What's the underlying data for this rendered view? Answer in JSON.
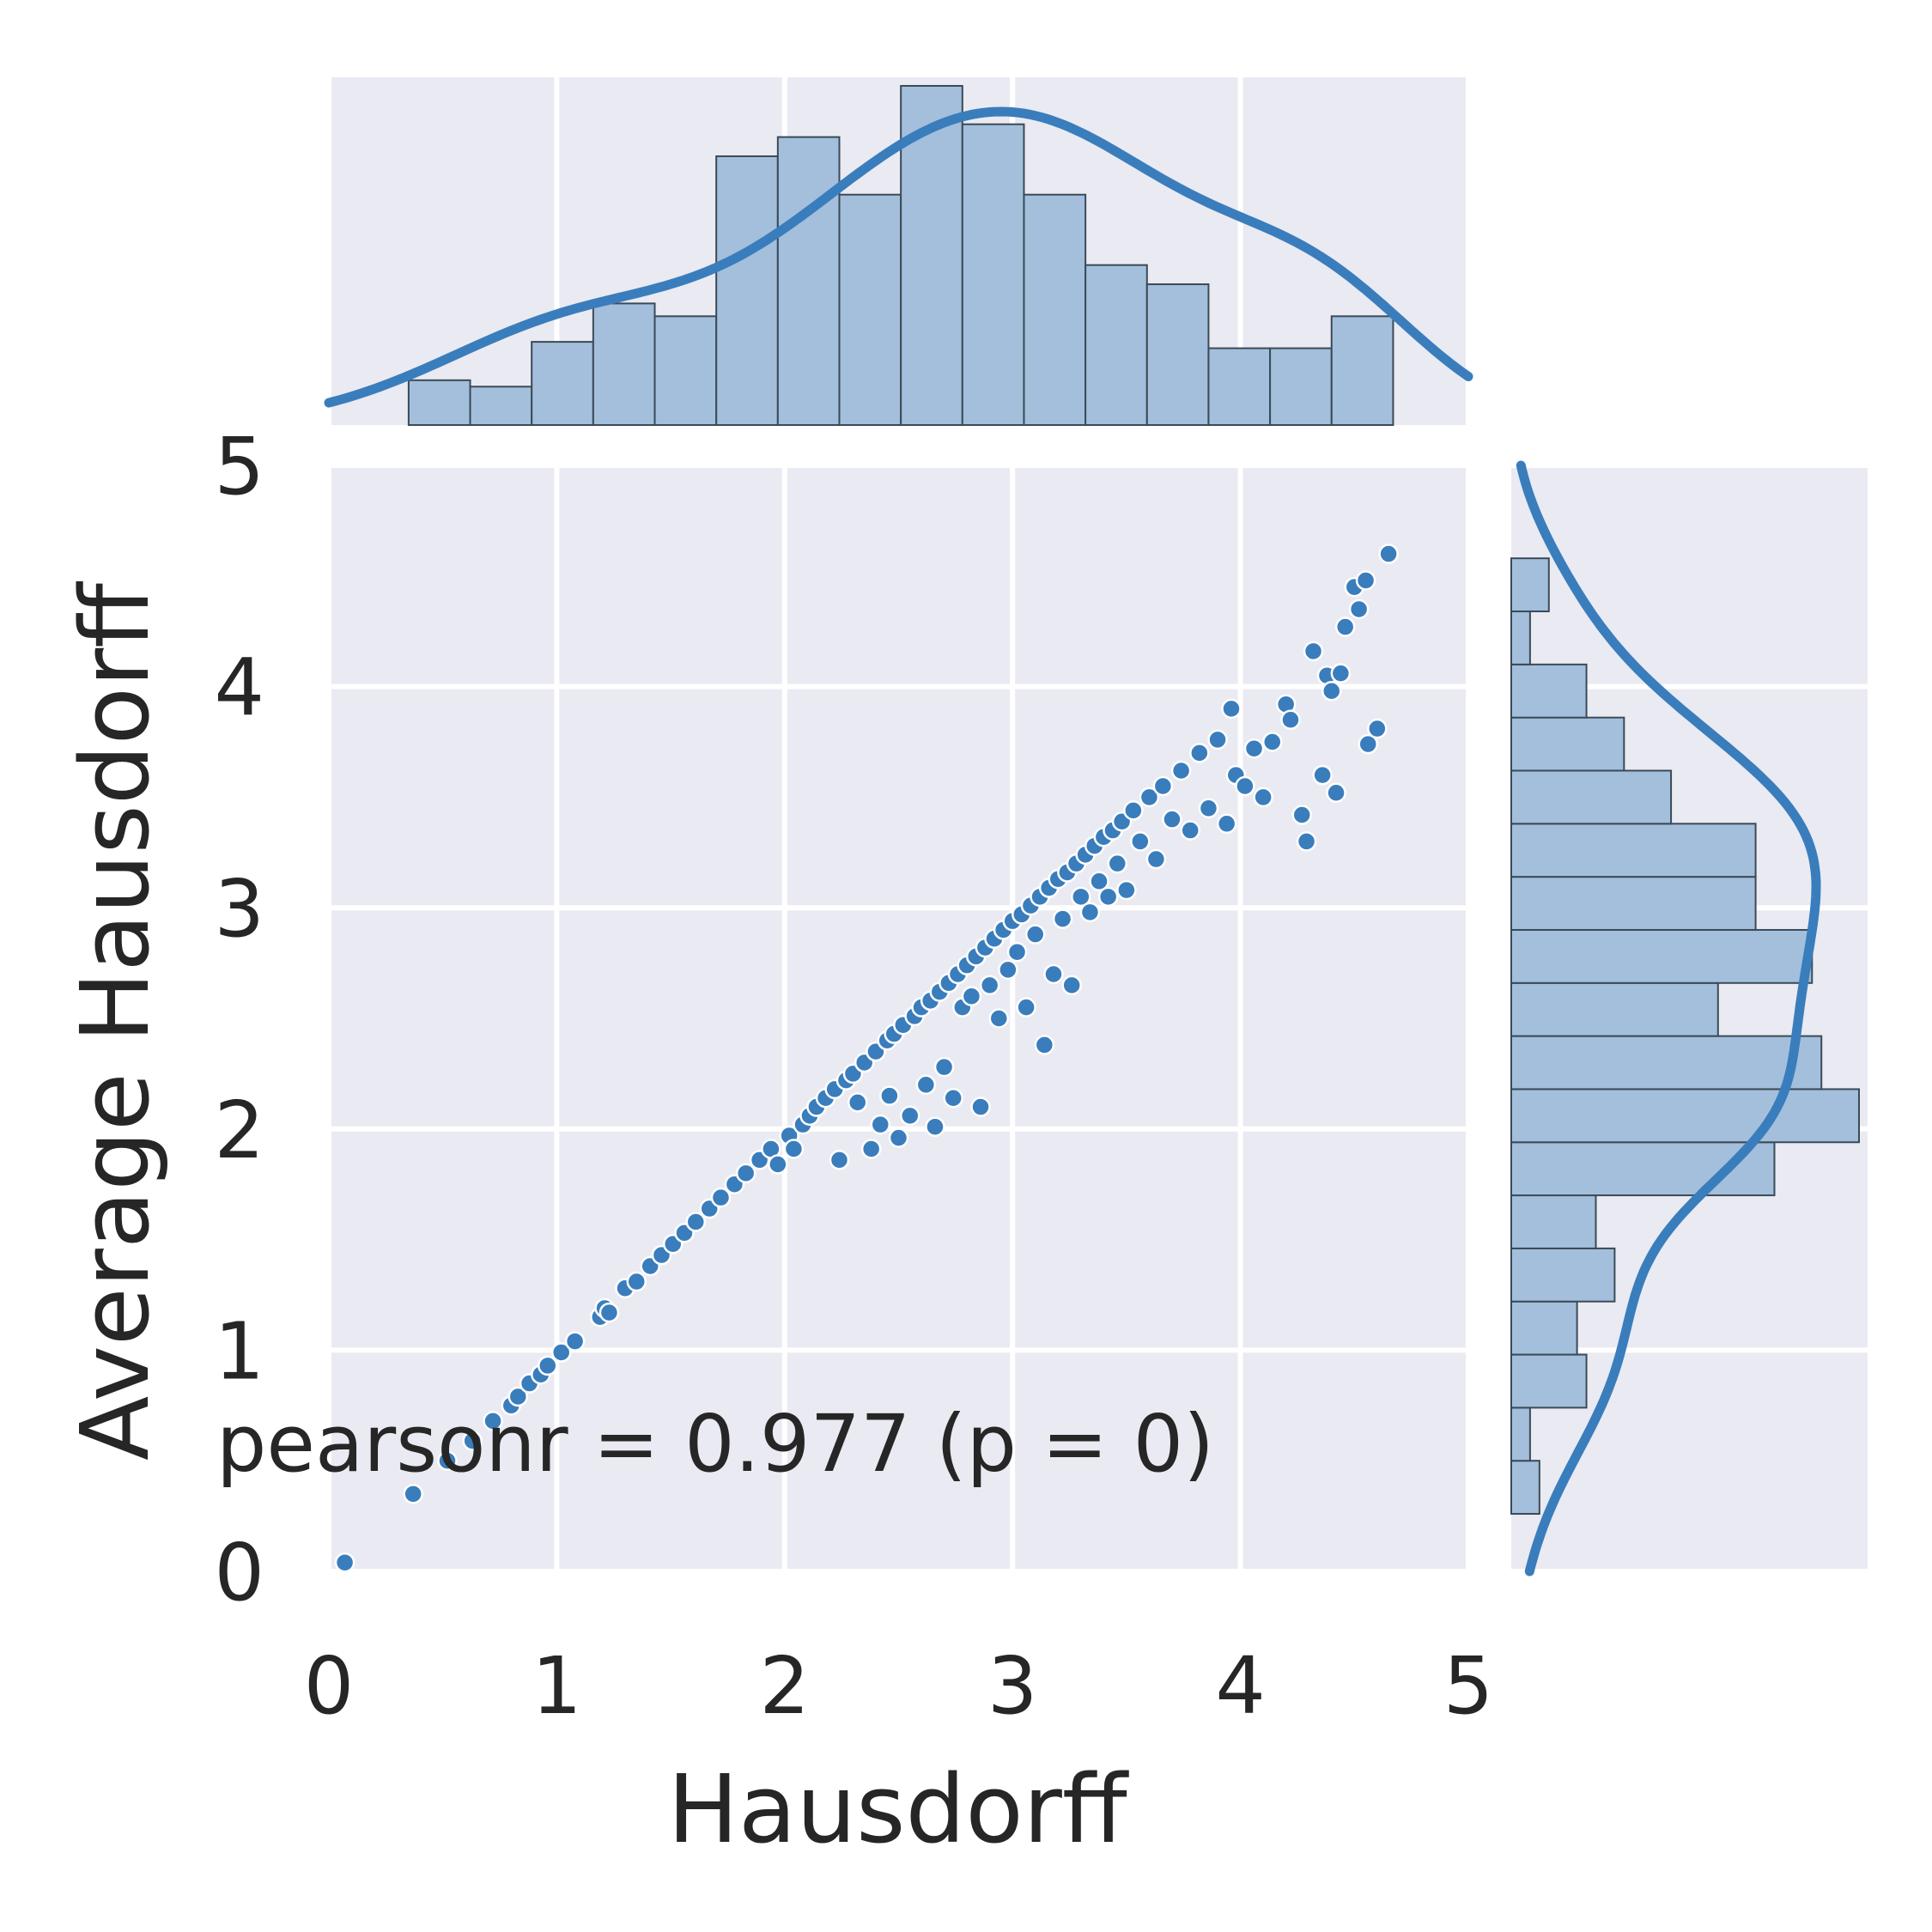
{
  "chart_data": {
    "type": "scatter",
    "xlabel": "Hausdorff",
    "ylabel": "Average Hausdorff",
    "xlim": [
      0,
      5
    ],
    "ylim": [
      0,
      5
    ],
    "x_ticks": [
      "0",
      "1",
      "2",
      "3",
      "4",
      "5"
    ],
    "y_ticks": [
      "0",
      "1",
      "2",
      "3",
      "4",
      "5"
    ],
    "annotation": "pearsonr = 0.977 (p = 0)",
    "grid": true,
    "background": "#eaeaf2",
    "color": "#3a7dbc",
    "hist_fill": "#a3bfdc",
    "hist_edge": "#3b4a57",
    "marginal_x_hist": {
      "bin_edges": [
        0.35,
        0.62,
        0.89,
        1.16,
        1.43,
        1.7,
        1.97,
        2.24,
        2.51,
        2.78,
        3.05,
        3.32,
        3.59,
        3.86,
        4.13,
        4.4,
        4.67
      ],
      "counts": [
        7,
        6,
        13,
        19,
        17,
        42,
        45,
        36,
        53,
        47,
        36,
        25,
        22,
        12,
        12,
        17
      ]
    },
    "marginal_y_hist": {
      "bin_edges": [
        0.26,
        0.5,
        0.74,
        0.98,
        1.22,
        1.46,
        1.7,
        1.94,
        2.18,
        2.42,
        2.66,
        2.9,
        3.14,
        3.38,
        3.62,
        3.86,
        4.1,
        4.34,
        4.58
      ],
      "counts": [
        3,
        2,
        8,
        7,
        11,
        9,
        28,
        37,
        33,
        22,
        32,
        26,
        26,
        17,
        12,
        8,
        2,
        4
      ]
    },
    "points": [
      [
        0.07,
        0.04
      ],
      [
        0.37,
        0.35
      ],
      [
        0.52,
        0.5
      ],
      [
        0.63,
        0.59
      ],
      [
        0.72,
        0.68
      ],
      [
        0.8,
        0.75
      ],
      [
        0.83,
        0.79
      ],
      [
        0.88,
        0.85
      ],
      [
        0.93,
        0.89
      ],
      [
        0.96,
        0.93
      ],
      [
        1.02,
        0.99
      ],
      [
        1.08,
        1.04
      ],
      [
        1.19,
        1.15
      ],
      [
        1.21,
        1.19
      ],
      [
        1.23,
        1.17
      ],
      [
        1.3,
        1.28
      ],
      [
        1.35,
        1.31
      ],
      [
        1.41,
        1.38
      ],
      [
        1.46,
        1.43
      ],
      [
        1.51,
        1.48
      ],
      [
        1.56,
        1.53
      ],
      [
        1.61,
        1.58
      ],
      [
        1.67,
        1.64
      ],
      [
        1.72,
        1.69
      ],
      [
        1.78,
        1.75
      ],
      [
        1.83,
        1.8
      ],
      [
        1.89,
        1.86
      ],
      [
        1.94,
        1.91
      ],
      [
        1.97,
        1.84
      ],
      [
        2.02,
        1.97
      ],
      [
        2.04,
        1.91
      ],
      [
        2.08,
        2.02
      ],
      [
        2.11,
        2.06
      ],
      [
        2.14,
        2.1
      ],
      [
        2.18,
        2.14
      ],
      [
        2.22,
        2.18
      ],
      [
        2.24,
        1.86
      ],
      [
        2.27,
        2.22
      ],
      [
        2.3,
        2.25
      ],
      [
        2.32,
        2.12
      ],
      [
        2.35,
        2.3
      ],
      [
        2.38,
        1.91
      ],
      [
        2.4,
        2.35
      ],
      [
        2.42,
        2.02
      ],
      [
        2.45,
        2.4
      ],
      [
        2.46,
        2.15
      ],
      [
        2.48,
        2.43
      ],
      [
        2.5,
        1.96
      ],
      [
        2.52,
        2.47
      ],
      [
        2.55,
        2.06
      ],
      [
        2.57,
        2.51
      ],
      [
        2.6,
        2.55
      ],
      [
        2.62,
        2.2
      ],
      [
        2.64,
        2.58
      ],
      [
        2.66,
        2.01
      ],
      [
        2.68,
        2.62
      ],
      [
        2.7,
        2.28
      ],
      [
        2.72,
        2.66
      ],
      [
        2.74,
        2.14
      ],
      [
        2.76,
        2.7
      ],
      [
        2.78,
        2.55
      ],
      [
        2.8,
        2.74
      ],
      [
        2.82,
        2.6
      ],
      [
        2.84,
        2.78
      ],
      [
        2.86,
        2.1
      ],
      [
        2.88,
        2.82
      ],
      [
        2.9,
        2.65
      ],
      [
        2.92,
        2.86
      ],
      [
        2.94,
        2.5
      ],
      [
        2.96,
        2.9
      ],
      [
        2.98,
        2.72
      ],
      [
        3.0,
        2.94
      ],
      [
        3.02,
        2.8
      ],
      [
        3.04,
        2.97
      ],
      [
        3.06,
        2.55
      ],
      [
        3.08,
        3.01
      ],
      [
        3.1,
        2.88
      ],
      [
        3.12,
        3.05
      ],
      [
        3.14,
        2.38
      ],
      [
        3.16,
        3.09
      ],
      [
        3.18,
        2.7
      ],
      [
        3.2,
        3.13
      ],
      [
        3.22,
        2.95
      ],
      [
        3.24,
        3.16
      ],
      [
        3.26,
        2.65
      ],
      [
        3.28,
        3.2
      ],
      [
        3.3,
        3.05
      ],
      [
        3.32,
        3.24
      ],
      [
        3.34,
        2.98
      ],
      [
        3.36,
        3.28
      ],
      [
        3.38,
        3.12
      ],
      [
        3.4,
        3.32
      ],
      [
        3.42,
        3.05
      ],
      [
        3.44,
        3.35
      ],
      [
        3.46,
        3.2
      ],
      [
        3.48,
        3.39
      ],
      [
        3.5,
        3.08
      ],
      [
        3.53,
        3.44
      ],
      [
        3.56,
        3.3
      ],
      [
        3.6,
        3.5
      ],
      [
        3.63,
        3.22
      ],
      [
        3.66,
        3.55
      ],
      [
        3.7,
        3.4
      ],
      [
        3.74,
        3.62
      ],
      [
        3.78,
        3.35
      ],
      [
        3.82,
        3.7
      ],
      [
        3.86,
        3.45
      ],
      [
        3.9,
        3.76
      ],
      [
        3.94,
        3.38
      ],
      [
        3.96,
        3.9
      ],
      [
        3.98,
        3.6
      ],
      [
        4.02,
        3.55
      ],
      [
        4.06,
        3.72
      ],
      [
        4.1,
        3.5
      ],
      [
        4.14,
        3.75
      ],
      [
        4.2,
        3.92
      ],
      [
        4.22,
        3.85
      ],
      [
        4.27,
        3.42
      ],
      [
        4.29,
        3.3
      ],
      [
        4.32,
        4.16
      ],
      [
        4.36,
        3.6
      ],
      [
        4.38,
        4.05
      ],
      [
        4.4,
        3.98
      ],
      [
        4.42,
        3.52
      ],
      [
        4.44,
        4.06
      ],
      [
        4.46,
        4.27
      ],
      [
        4.5,
        4.45
      ],
      [
        4.52,
        4.35
      ],
      [
        4.55,
        4.48
      ],
      [
        4.56,
        3.74
      ],
      [
        4.6,
        3.81
      ],
      [
        4.65,
        4.6
      ]
    ]
  }
}
